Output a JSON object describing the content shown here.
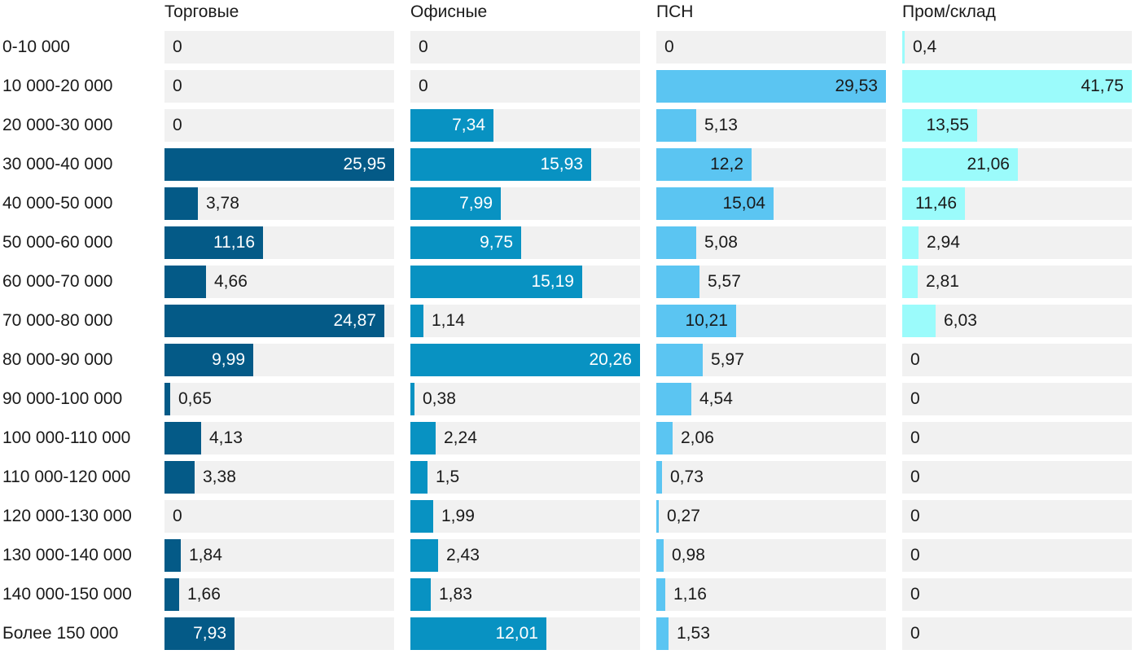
{
  "chart_data": {
    "type": "bar",
    "orientation": "horizontal",
    "layout": "small-multiples",
    "categories": [
      "0-10 000",
      "10 000-20 000",
      "20 000-30 000",
      "30 000-40 000",
      "40 000-50 000",
      "50 000-60 000",
      "60 000-70 000",
      "70 000-80 000",
      "80 000-90 000",
      "90 000-100 000",
      "100 000-110 000",
      "110 000-120 000",
      "120 000-130 000",
      "130 000-140 000",
      "140 000-150 000",
      "Более 150 000"
    ],
    "series": [
      {
        "name": "Торговые",
        "color": "#045a87",
        "xlim": [
          0,
          25.95
        ],
        "values": [
          0,
          0,
          0,
          25.95,
          3.78,
          11.16,
          4.66,
          24.87,
          9.99,
          0.65,
          4.13,
          3.38,
          0,
          1.84,
          1.66,
          7.93
        ],
        "labels": [
          "0",
          "0",
          "0",
          "25,95",
          "3,78",
          "11,16",
          "4,66",
          "24,87",
          "9,99",
          "0,65",
          "4,13",
          "3,38",
          "0",
          "1,84",
          "1,66",
          "7,93"
        ]
      },
      {
        "name": "Офисные",
        "color": "#0892c2",
        "xlim": [
          0,
          20.26
        ],
        "values": [
          0,
          0,
          7.34,
          15.93,
          7.99,
          9.75,
          15.19,
          1.14,
          20.26,
          0.38,
          2.24,
          1.5,
          1.99,
          2.43,
          1.83,
          12.01
        ],
        "labels": [
          "0",
          "0",
          "7,34",
          "15,93",
          "7,99",
          "9,75",
          "15,19",
          "1,14",
          "20,26",
          "0,38",
          "2,24",
          "1,5",
          "1,99",
          "2,43",
          "1,83",
          "12,01"
        ]
      },
      {
        "name": "ПСН",
        "color": "#5bc5f2",
        "xlim": [
          0,
          29.53
        ],
        "values": [
          0,
          29.53,
          5.13,
          12.2,
          15.04,
          5.08,
          5.57,
          10.21,
          5.97,
          4.54,
          2.06,
          0.73,
          0.27,
          0.98,
          1.16,
          1.53
        ],
        "labels": [
          "0",
          "29,53",
          "5,13",
          "12,2",
          "15,04",
          "5,08",
          "5,57",
          "10,21",
          "5,97",
          "4,54",
          "2,06",
          "0,73",
          "0,27",
          "0,98",
          "1,16",
          "1,53"
        ]
      },
      {
        "name": "Пром/склад",
        "color": "#9bfbfb",
        "xlim": [
          0,
          41.75
        ],
        "values": [
          0.4,
          41.75,
          13.55,
          21.06,
          11.46,
          2.94,
          2.81,
          6.03,
          0,
          0,
          0,
          0,
          0,
          0,
          0,
          0
        ],
        "labels": [
          "0,4",
          "41,75",
          "13,55",
          "21,06",
          "11,46",
          "2,94",
          "2,81",
          "6,03",
          "0",
          "0",
          "0",
          "0",
          "0",
          "0",
          "0",
          "0"
        ]
      }
    ],
    "colors": {
      "track": "#f1f1f1",
      "text_dark": "#1a1a1a",
      "text_light": "#ffffff"
    },
    "title": "",
    "xlabel": "",
    "ylabel": "",
    "grid": false
  }
}
